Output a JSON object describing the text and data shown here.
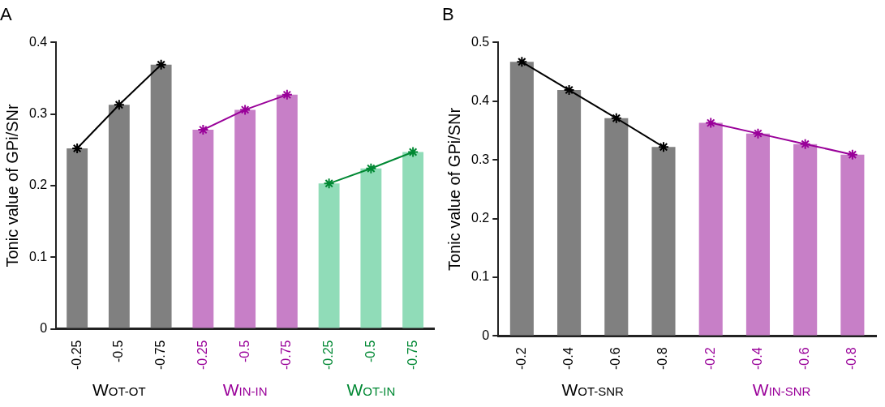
{
  "chart_data": [
    {
      "type": "bar",
      "title": "A",
      "ylabel": "Tonic value of GPi/SNr",
      "categories": [
        "-0.25",
        "-0.5",
        "-0.75",
        "-0.25",
        "-0.5",
        "-0.75",
        "-0.25",
        "-0.5",
        "-0.75"
      ],
      "ylim": [
        0,
        0.4
      ],
      "yticks": [
        0,
        0.1,
        0.2,
        0.3,
        0.4
      ],
      "marker": "cross",
      "series": [
        {
          "color": "#808080",
          "values": [
            0.252,
            0.313,
            0.369,
            null,
            null,
            null,
            null,
            null,
            null
          ]
        },
        {
          "color": "#c77fc7",
          "values": [
            null,
            null,
            null,
            0.278,
            0.306,
            0.327,
            null,
            null,
            null
          ]
        },
        {
          "color": "#90dcb8",
          "values": [
            null,
            null,
            null,
            null,
            null,
            null,
            0.203,
            0.224,
            0.247
          ]
        },
        {
          "type": "line",
          "name": "WOT-OT",
          "color": "#000000",
          "values": [
            0.252,
            0.313,
            0.369,
            null,
            null,
            null,
            null,
            null,
            null
          ]
        },
        {
          "type": "line",
          "name": "WIN-IN",
          "color": "#990099",
          "values": [
            null,
            null,
            null,
            0.278,
            0.306,
            0.327,
            null,
            null,
            null
          ]
        },
        {
          "type": "line",
          "name": "WOT-IN",
          "color": "#008833",
          "values": [
            null,
            null,
            null,
            null,
            null,
            null,
            0.203,
            0.224,
            0.247
          ]
        }
      ]
    },
    {
      "type": "bar",
      "title": "B",
      "ylabel": "Tonic value of GPi/SNr",
      "categories": [
        "-0.2",
        "-0.4",
        "-0.6",
        "-0.8",
        "-0.2",
        "-0.4",
        "-0.6",
        "-0.8"
      ],
      "ylim": [
        0,
        0.5
      ],
      "yticks": [
        0,
        0.1,
        0.2,
        0.3,
        0.4,
        0.5
      ],
      "marker": "cross",
      "series": [
        {
          "color": "#808080",
          "values": [
            0.467,
            0.419,
            0.371,
            0.322,
            null,
            null,
            null,
            null
          ]
        },
        {
          "color": "#c77fc7",
          "values": [
            null,
            null,
            null,
            null,
            0.363,
            0.345,
            0.327,
            0.309
          ]
        },
        {
          "type": "line",
          "name": "WOT-SNR",
          "color": "#000000",
          "values": [
            0.467,
            0.419,
            0.371,
            0.322,
            null,
            null,
            null,
            null
          ]
        },
        {
          "type": "line",
          "name": "WIN-SNR",
          "color": "#990099",
          "values": [
            null,
            null,
            null,
            null,
            0.363,
            0.345,
            0.327,
            0.309
          ]
        }
      ]
    }
  ]
}
